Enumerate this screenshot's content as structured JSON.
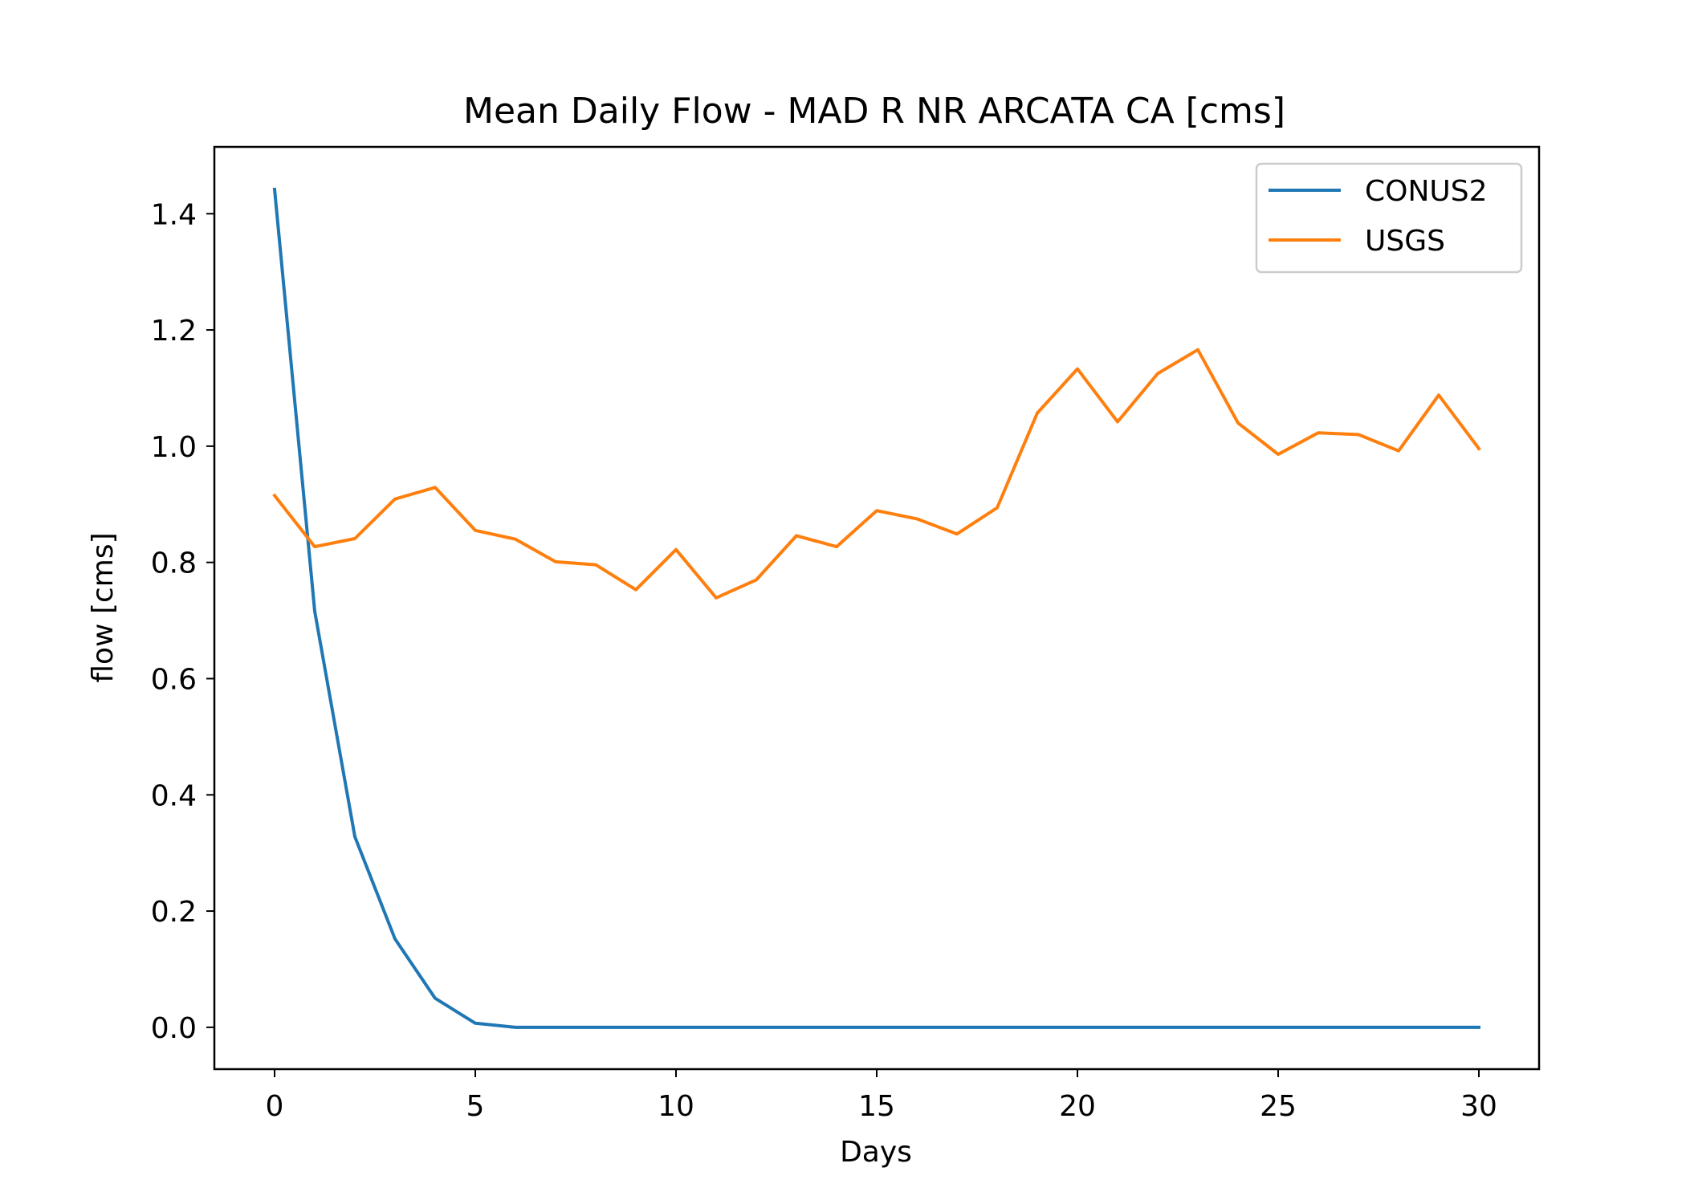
{
  "chart_data": {
    "type": "line",
    "title": "Mean Daily Flow - MAD R NR ARCATA CA [cms]",
    "xlabel": "Days",
    "ylabel": "flow [cms]",
    "xlim": [
      -1.5,
      31.5
    ],
    "ylim": [
      -0.072,
      1.515
    ],
    "xticks": [
      0,
      5,
      10,
      15,
      20,
      25,
      30
    ],
    "xtick_labels": [
      "0",
      "5",
      "10",
      "15",
      "20",
      "25",
      "30"
    ],
    "yticks": [
      0.0,
      0.2,
      0.4,
      0.6,
      0.8,
      1.0,
      1.2,
      1.4
    ],
    "ytick_labels": [
      "0.0",
      "0.2",
      "0.4",
      "0.6",
      "0.8",
      "1.0",
      "1.2",
      "1.4"
    ],
    "grid": false,
    "legend_position": "top-right",
    "x": [
      0,
      1,
      2,
      3,
      4,
      5,
      6,
      7,
      8,
      9,
      10,
      11,
      12,
      13,
      14,
      15,
      16,
      17,
      18,
      19,
      20,
      21,
      22,
      23,
      24,
      25,
      26,
      27,
      28,
      29,
      30
    ],
    "series": [
      {
        "name": "CONUS2",
        "color": "#1f77b4",
        "values": [
          1.442,
          0.716,
          0.328,
          0.152,
          0.05,
          0.007,
          0.0,
          0.0,
          0.0,
          0.0,
          0.0,
          0.0,
          0.0,
          0.0,
          0.0,
          0.0,
          0.0,
          0.0,
          0.0,
          0.0,
          0.0,
          0.0,
          0.0,
          0.0,
          0.0,
          0.0,
          0.0,
          0.0,
          0.0,
          0.0,
          0.0
        ]
      },
      {
        "name": "USGS",
        "color": "#ff7f0e",
        "values": [
          0.915,
          0.827,
          0.841,
          0.909,
          0.929,
          0.855,
          0.84,
          0.801,
          0.796,
          0.753,
          0.822,
          0.739,
          0.77,
          0.846,
          0.827,
          0.889,
          0.875,
          0.849,
          0.894,
          1.057,
          1.133,
          1.042,
          1.125,
          1.166,
          1.04,
          0.986,
          1.023,
          1.02,
          0.992,
          1.088,
          0.996
        ]
      }
    ]
  }
}
